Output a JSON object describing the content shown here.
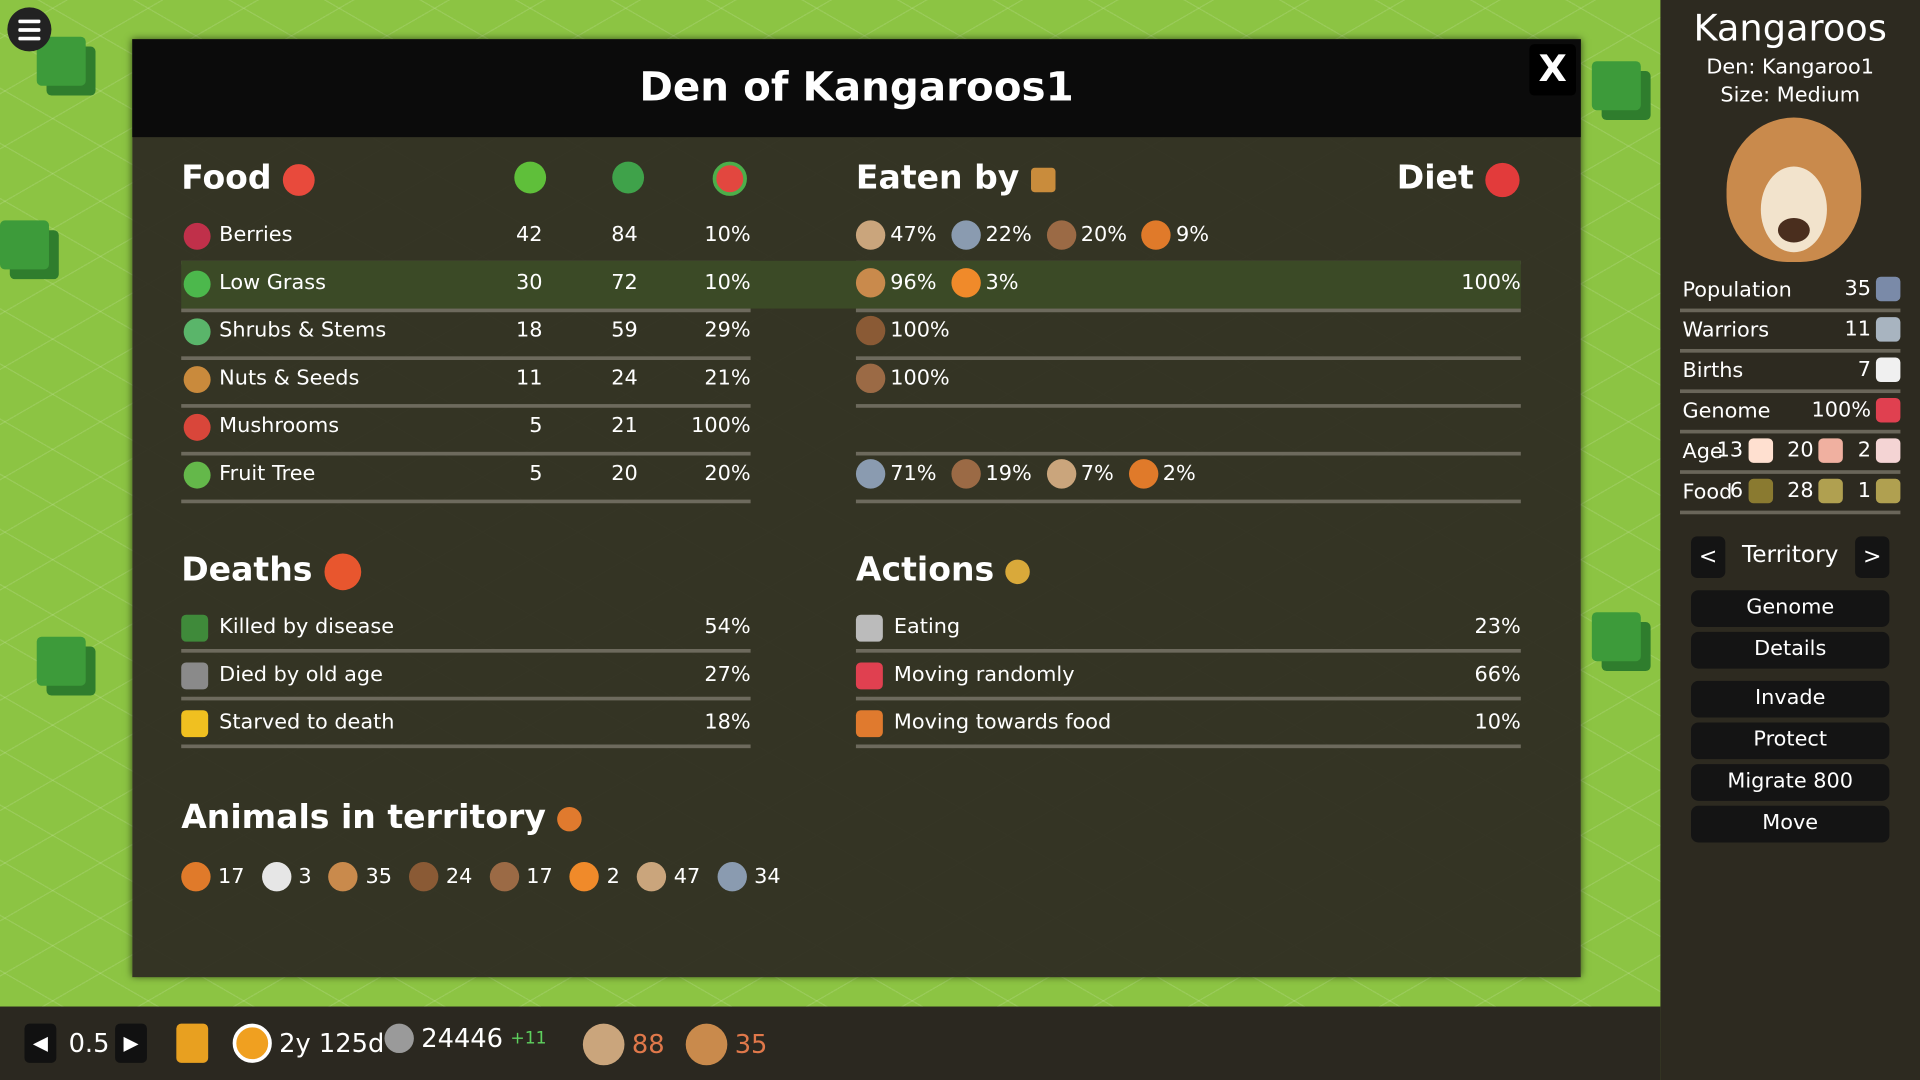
{
  "modal": {
    "title": "Den of Kangaroos1",
    "close_label": "X",
    "food": {
      "heading": "Food",
      "columns": [
        "sprout-icon",
        "tree-icon",
        "watermelon-icon"
      ],
      "rows": [
        {
          "name": "Berries",
          "icon": "berries-icon",
          "a": "42",
          "b": "84",
          "c": "10%",
          "eaten_by": [
            [
              "hedgehog-icon",
              "47%"
            ],
            [
              "mouse-icon",
              "22%"
            ],
            [
              "boar-icon",
              "20%"
            ],
            [
              "turtle-icon",
              "9%"
            ]
          ],
          "diet": ""
        },
        {
          "name": "Low Grass",
          "icon": "clover-icon",
          "a": "30",
          "b": "72",
          "c": "10%",
          "eaten_by": [
            [
              "kangaroo-icon",
              "96%"
            ],
            [
              "fox-icon",
              "3%"
            ]
          ],
          "diet": "100%",
          "highlight": true
        },
        {
          "name": "Shrubs & Stems",
          "icon": "shrub-icon",
          "a": "18",
          "b": "59",
          "c": "29%",
          "eaten_by": [
            [
              "deer-icon",
              "100%"
            ]
          ],
          "diet": ""
        },
        {
          "name": "Nuts & Seeds",
          "icon": "acorn-icon",
          "a": "11",
          "b": "24",
          "c": "21%",
          "eaten_by": [
            [
              "boar-icon",
              "100%"
            ]
          ],
          "diet": ""
        },
        {
          "name": "Mushrooms",
          "icon": "mushroom-icon",
          "a": "5",
          "b": "21",
          "c": "100%",
          "eaten_by": [],
          "diet": ""
        },
        {
          "name": "Fruit Tree",
          "icon": "fruit-tree-icon",
          "a": "5",
          "b": "20",
          "c": "20%",
          "eaten_by": [
            [
              "mouse-icon",
              "71%"
            ],
            [
              "boar-icon",
              "19%"
            ],
            [
              "hedgehog-icon",
              "7%"
            ],
            [
              "turtle-icon",
              "2%"
            ]
          ],
          "diet": ""
        }
      ]
    },
    "eaten_by_heading": "Eaten by",
    "diet_heading": "Diet",
    "deaths": {
      "heading": "Deaths",
      "rows": [
        {
          "label": "Killed by disease",
          "value": "54%"
        },
        {
          "label": "Died by old age",
          "value": "27%"
        },
        {
          "label": "Starved to death",
          "value": "18%"
        }
      ]
    },
    "actions": {
      "heading": "Actions",
      "rows": [
        {
          "label": "Eating",
          "value": "23%"
        },
        {
          "label": "Moving randomly",
          "value": "66%"
        },
        {
          "label": "Moving towards food",
          "value": "10%"
        }
      ]
    },
    "animals": {
      "heading": "Animals in territory",
      "items": [
        [
          "turtle-icon",
          "17"
        ],
        [
          "cow-icon",
          "3"
        ],
        [
          "kangaroo-icon",
          "35"
        ],
        [
          "deer-icon",
          "24"
        ],
        [
          "boar-icon",
          "17"
        ],
        [
          "fox-icon",
          "2"
        ],
        [
          "hedgehog-icon",
          "47"
        ],
        [
          "mouse-icon",
          "34"
        ]
      ]
    }
  },
  "side": {
    "title": "Kangaroos",
    "den": "Den: Kangaroo1",
    "size": "Size: Medium",
    "stats": [
      {
        "label": "Population",
        "values": [
          "35"
        ]
      },
      {
        "label": "Warriors",
        "values": [
          "11"
        ]
      },
      {
        "label": "Births",
        "values": [
          "7"
        ]
      },
      {
        "label": "Genome",
        "values": [
          "100%"
        ]
      },
      {
        "label": "Age",
        "values": [
          "13",
          "20",
          "2"
        ]
      },
      {
        "label": "Food",
        "values": [
          "6",
          "28",
          "1"
        ]
      }
    ],
    "nav": {
      "prev": "<",
      "label": "Territory",
      "next": ">"
    },
    "buttons": [
      "Genome",
      "Details",
      "Invade",
      "Protect",
      "Migrate  800",
      "Move"
    ]
  },
  "bottom": {
    "prev": "◀",
    "speed": "0.5",
    "next": "▶",
    "time": "2y 125d",
    "dna": "24446",
    "dna_delta": "+11",
    "hedgehogs": "88",
    "kangaroos": "35"
  },
  "colors": {
    "accent_green": "#3b4a26",
    "panel": "#322f23",
    "map": "#8cc443"
  }
}
